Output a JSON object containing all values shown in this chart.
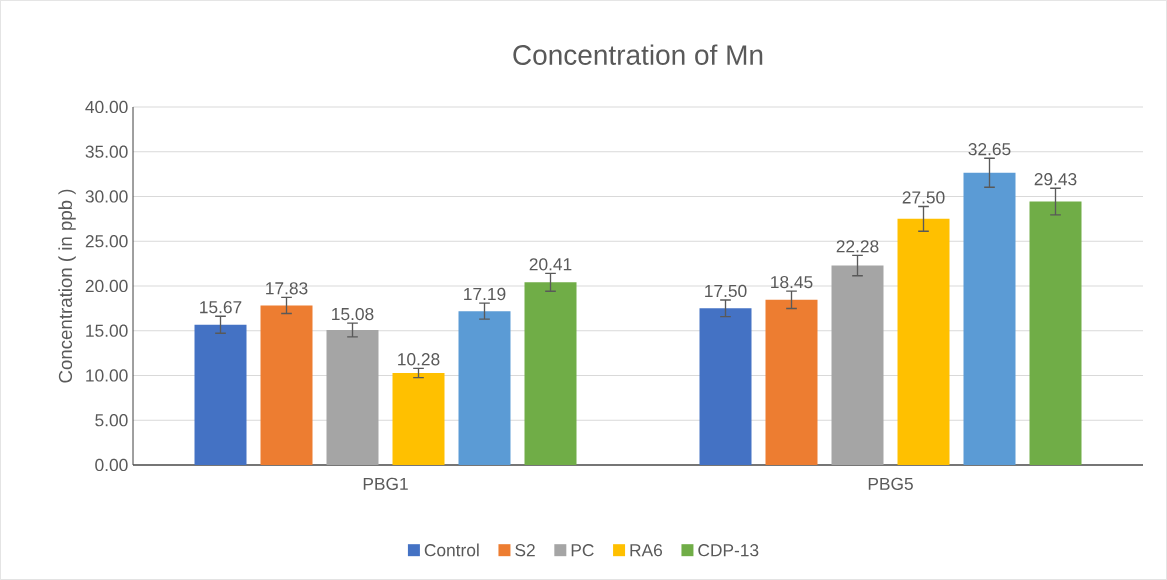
{
  "chart_data": {
    "type": "bar",
    "title": "Concentration of Mn",
    "ylabel": "Concentration ( in ppb )",
    "categories": [
      "PBG1",
      "PBG5"
    ],
    "series": [
      {
        "name": "Control",
        "color": "#4472c4",
        "values": [
          15.67,
          17.5
        ],
        "errors": [
          0.95,
          0.93
        ],
        "value_labels": [
          "15.67",
          "17.50"
        ]
      },
      {
        "name": "S2",
        "color": "#ed7d31",
        "values": [
          17.83,
          18.45
        ],
        "errors": [
          0.9,
          0.97
        ],
        "value_labels": [
          "17.83",
          "18.45"
        ]
      },
      {
        "name": "PC",
        "color": "#a5a5a5",
        "values": [
          15.08,
          22.28
        ],
        "errors": [
          0.77,
          1.14
        ],
        "value_labels": [
          "15.08",
          "22.28"
        ]
      },
      {
        "name": "RA6",
        "color": "#ffc000",
        "values": [
          10.28,
          27.5
        ],
        "errors": [
          0.52,
          1.38
        ],
        "value_labels": [
          "10.28",
          "27.50"
        ]
      },
      {
        "color": "#5b9bd5",
        "values": [
          17.19,
          32.65
        ],
        "errors": [
          0.9,
          1.62
        ],
        "value_labels": [
          "17.19",
          "32.65"
        ]
      },
      {
        "name": "CDP-13",
        "color": "#70ad47",
        "values": [
          20.41,
          29.43
        ],
        "errors": [
          1.0,
          1.49
        ],
        "value_labels": [
          "20.41",
          "29.43"
        ]
      }
    ],
    "ylim": [
      0,
      40
    ],
    "yticks": [
      {
        "value": 0,
        "label": "0.00"
      },
      {
        "value": 5,
        "label": "5.00"
      },
      {
        "value": 10,
        "label": "10.00"
      },
      {
        "value": 15,
        "label": "15.00"
      },
      {
        "value": 20,
        "label": "20.00"
      },
      {
        "value": 25,
        "label": "25.00"
      },
      {
        "value": 30,
        "label": "30.00"
      },
      {
        "value": 35,
        "label": "35.00"
      },
      {
        "value": 40,
        "label": "40.00"
      }
    ],
    "grid": "y",
    "legend": "bottom"
  }
}
